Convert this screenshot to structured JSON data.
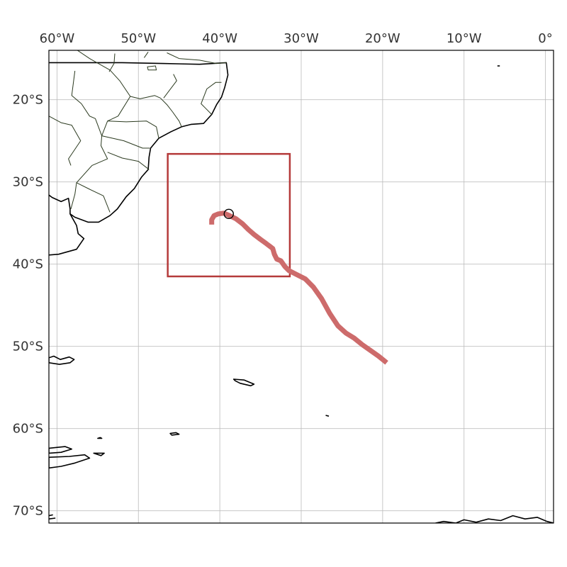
{
  "map": {
    "lon_range": [
      -61,
      1
    ],
    "lat_range": [
      -71.5,
      -14
    ],
    "lon_ticks": [
      {
        "value": -60,
        "label": "60°W"
      },
      {
        "value": -50,
        "label": "50°W"
      },
      {
        "value": -40,
        "label": "40°W"
      },
      {
        "value": -30,
        "label": "30°W"
      },
      {
        "value": -20,
        "label": "20°W"
      },
      {
        "value": -10,
        "label": "10°W"
      },
      {
        "value": 0,
        "label": "0°"
      }
    ],
    "lat_ticks": [
      {
        "value": -20,
        "label": "20°S"
      },
      {
        "value": -30,
        "label": "30°S"
      },
      {
        "value": -40,
        "label": "40°S"
      },
      {
        "value": -50,
        "label": "50°S"
      },
      {
        "value": -60,
        "label": "60°S"
      },
      {
        "value": -70,
        "label": "70°S"
      }
    ],
    "gridlines": true,
    "colors": {
      "track": "#cd6b6b",
      "box": "#b53a3a",
      "coast": "#000000",
      "border": "#2b3a1f",
      "grid": "#bbbbbb"
    },
    "region_box": {
      "lon_min": -46.4,
      "lon_max": -31.4,
      "lat_min": -41.5,
      "lat_max": -26.6
    },
    "track": {
      "lon": [
        -41.0,
        -41.0,
        -40.7,
        -40.2,
        -39.5,
        -38.8,
        -38.0,
        -37.2,
        -36.5,
        -35.8,
        -35.0,
        -34.3,
        -33.5,
        -33.3,
        -33.0,
        -32.5,
        -32.0,
        -31.5,
        -30.5,
        -29.5,
        -28.5,
        -27.5,
        -26.5,
        -25.5,
        -24.5,
        -23.5,
        -22.5,
        -21.5,
        -20.5,
        -19.5
      ],
      "lat": [
        -35.2,
        -34.6,
        -34.1,
        -33.9,
        -33.8,
        -34.1,
        -34.5,
        -35.1,
        -35.8,
        -36.4,
        -37.0,
        -37.5,
        -38.1,
        -38.8,
        -39.4,
        -39.6,
        -40.3,
        -40.8,
        -41.3,
        -41.8,
        -42.8,
        -44.2,
        -46.0,
        -47.5,
        -48.4,
        -49.0,
        -49.8,
        -50.5,
        -51.2,
        -52.0
      ],
      "start_marker": {
        "lon": -38.9,
        "lat": -33.9
      }
    },
    "land": {
      "south_america": [
        [
          -61,
          -15.5
        ],
        [
          -52,
          -15.5
        ],
        [
          -47,
          -15.6
        ],
        [
          -42.5,
          -15.7
        ],
        [
          -39.2,
          -15.5
        ],
        [
          -39.0,
          -17.0
        ],
        [
          -39.4,
          -18.5
        ],
        [
          -39.8,
          -19.7
        ],
        [
          -40.4,
          -20.6
        ],
        [
          -41.0,
          -21.8
        ],
        [
          -42.0,
          -22.9
        ],
        [
          -43.5,
          -23.0
        ],
        [
          -44.7,
          -23.3
        ],
        [
          -46.0,
          -23.9
        ],
        [
          -47.5,
          -24.7
        ],
        [
          -48.5,
          -25.9
        ],
        [
          -48.7,
          -27.0
        ],
        [
          -48.8,
          -28.5
        ],
        [
          -49.6,
          -29.4
        ],
        [
          -50.5,
          -30.8
        ],
        [
          -51.5,
          -31.8
        ],
        [
          -52.6,
          -33.3
        ],
        [
          -53.5,
          -34.1
        ],
        [
          -54.9,
          -34.9
        ],
        [
          -56.2,
          -34.9
        ],
        [
          -57.8,
          -34.3
        ],
        [
          -58.4,
          -33.9
        ],
        [
          -57.6,
          -35.3
        ],
        [
          -57.4,
          -36.3
        ],
        [
          -56.7,
          -36.9
        ],
        [
          -57.6,
          -38.2
        ],
        [
          -59.8,
          -38.8
        ],
        [
          -61,
          -38.9
        ]
      ],
      "river_plate_north_shore": [
        [
          -58.4,
          -33.9
        ],
        [
          -58.4,
          -33.3
        ],
        [
          -58.6,
          -32.0
        ],
        [
          -59.5,
          -32.4
        ],
        [
          -60.6,
          -31.9
        ],
        [
          -61,
          -31.6
        ]
      ],
      "islands": [
        [
          [
            -61,
            -51.4
          ],
          [
            -60.4,
            -51.2
          ],
          [
            -59.6,
            -51.6
          ],
          [
            -58.5,
            -51.3
          ],
          [
            -57.9,
            -51.6
          ],
          [
            -58.4,
            -52.0
          ],
          [
            -59.7,
            -52.2
          ],
          [
            -61,
            -52.0
          ]
        ],
        [
          [
            -38.3,
            -54.0
          ],
          [
            -37.0,
            -54.1
          ],
          [
            -35.8,
            -54.6
          ],
          [
            -36.2,
            -54.8
          ],
          [
            -37.5,
            -54.5
          ],
          [
            -38.1,
            -54.2
          ]
        ],
        [
          [
            -46.1,
            -60.6
          ],
          [
            -45.4,
            -60.5
          ],
          [
            -45.0,
            -60.7
          ],
          [
            -45.9,
            -60.8
          ]
        ],
        [
          [
            -61,
            -62.4
          ],
          [
            -59.0,
            -62.2
          ],
          [
            -58.2,
            -62.5
          ],
          [
            -59.5,
            -62.9
          ],
          [
            -61,
            -63.0
          ]
        ],
        [
          [
            -61,
            -63.5
          ],
          [
            -58.5,
            -63.4
          ],
          [
            -56.6,
            -63.2
          ],
          [
            -56.0,
            -63.6
          ],
          [
            -57.8,
            -64.2
          ],
          [
            -59.5,
            -64.6
          ],
          [
            -61,
            -64.8
          ]
        ],
        [
          [
            -55.5,
            -63.0
          ],
          [
            -54.2,
            -63.0
          ],
          [
            -54.6,
            -63.3
          ]
        ],
        [
          [
            -55.0,
            -61.2
          ],
          [
            -54.7,
            -61.1
          ],
          [
            -54.5,
            -61.2
          ]
        ],
        [
          [
            -27.0,
            -58.4
          ],
          [
            -26.6,
            -58.5
          ]
        ],
        [
          [
            -5.9,
            -15.9
          ],
          [
            -5.6,
            -15.9
          ]
        ],
        [
          [
            -61,
            -70.6
          ],
          [
            -60.5,
            -70.5
          ]
        ],
        [
          [
            -61,
            -71.0
          ],
          [
            -60.2,
            -70.9
          ]
        ]
      ],
      "antarctica": [
        [
          -13.5,
          -71.5
        ],
        [
          -12.5,
          -71.3
        ],
        [
          -11.0,
          -71.5
        ],
        [
          -10.0,
          -71.1
        ],
        [
          -8.5,
          -71.4
        ],
        [
          -7.0,
          -71.0
        ],
        [
          -5.5,
          -71.2
        ],
        [
          -4.0,
          -70.6
        ],
        [
          -2.5,
          -71.0
        ],
        [
          -1.0,
          -70.8
        ],
        [
          0.2,
          -71.3
        ],
        [
          1,
          -71.5
        ]
      ],
      "borders": [
        [
          [
            -57.5,
            -14
          ],
          [
            -56.0,
            -15.0
          ],
          [
            -53.5,
            -16.4
          ],
          [
            -52.3,
            -17.7
          ],
          [
            -51.0,
            -19.6
          ],
          [
            -49.8,
            -19.9
          ],
          [
            -48.0,
            -19.5
          ],
          [
            -47.3,
            -19.8
          ]
        ],
        [
          [
            -47.3,
            -19.8
          ],
          [
            -46.5,
            -20.6
          ],
          [
            -45.8,
            -21.5
          ],
          [
            -45.0,
            -22.6
          ],
          [
            -44.7,
            -23.3
          ]
        ],
        [
          [
            -41.0,
            -21.8
          ],
          [
            -41.8,
            -21.0
          ],
          [
            -42.3,
            -20.5
          ],
          [
            -41.6,
            -18.7
          ],
          [
            -40.5,
            -17.9
          ],
          [
            -39.8,
            -17.9
          ]
        ],
        [
          [
            -46.5,
            -14.3
          ],
          [
            -45.0,
            -15.0
          ],
          [
            -42.5,
            -15.2
          ],
          [
            -40.4,
            -15.6
          ],
          [
            -39.2,
            -15.5
          ]
        ],
        [
          [
            -51.0,
            -19.6
          ],
          [
            -52.5,
            -22.0
          ],
          [
            -53.8,
            -22.6
          ],
          [
            -51.5,
            -22.7
          ],
          [
            -49.0,
            -22.6
          ],
          [
            -47.8,
            -23.3
          ],
          [
            -47.5,
            -24.7
          ]
        ],
        [
          [
            -53.8,
            -22.6
          ],
          [
            -54.5,
            -24.4
          ],
          [
            -51.8,
            -25.0
          ],
          [
            -49.5,
            -25.9
          ],
          [
            -48.6,
            -25.9
          ]
        ],
        [
          [
            -53.8,
            -26.4
          ],
          [
            -52.0,
            -27.1
          ],
          [
            -50.0,
            -27.5
          ],
          [
            -48.7,
            -28.5
          ]
        ],
        [
          [
            -54.5,
            -24.4
          ],
          [
            -54.6,
            -25.6
          ],
          [
            -53.8,
            -27.2
          ],
          [
            -55.7,
            -28.0
          ],
          [
            -57.6,
            -30.1
          ],
          [
            -56.0,
            -30.9
          ],
          [
            -54.3,
            -31.7
          ],
          [
            -53.5,
            -33.7
          ]
        ],
        [
          [
            -57.6,
            -30.1
          ],
          [
            -57.8,
            -31.5
          ],
          [
            -58.3,
            -33.3
          ]
        ],
        [
          [
            -58.3,
            -28.0
          ],
          [
            -58.6,
            -27.2
          ],
          [
            -57.1,
            -25.0
          ],
          [
            -58.2,
            -23.1
          ],
          [
            -59.5,
            -22.8
          ],
          [
            -61,
            -22.0
          ]
        ],
        [
          [
            -57.0,
            -20.5
          ],
          [
            -56.0,
            -22.0
          ],
          [
            -55.3,
            -22.3
          ],
          [
            -54.5,
            -24.4
          ]
        ],
        [
          [
            -57.8,
            -16.5
          ],
          [
            -58.2,
            -19.5
          ],
          [
            -57.0,
            -20.5
          ]
        ],
        [
          [
            -53.6,
            -16.6
          ],
          [
            -53.0,
            -15.6
          ],
          [
            -52.9,
            -14.4
          ]
        ],
        [
          [
            -45.7,
            -16.9
          ],
          [
            -45.3,
            -17.7
          ],
          [
            -46.9,
            -19.8
          ]
        ],
        [
          [
            -49.3,
            -14.9
          ],
          [
            -48.8,
            -14.2
          ]
        ]
      ],
      "lakes": [
        [
          [
            -48.9,
            -16.0
          ],
          [
            -47.9,
            -15.9
          ],
          [
            -47.8,
            -16.4
          ],
          [
            -48.8,
            -16.4
          ]
        ]
      ]
    }
  }
}
